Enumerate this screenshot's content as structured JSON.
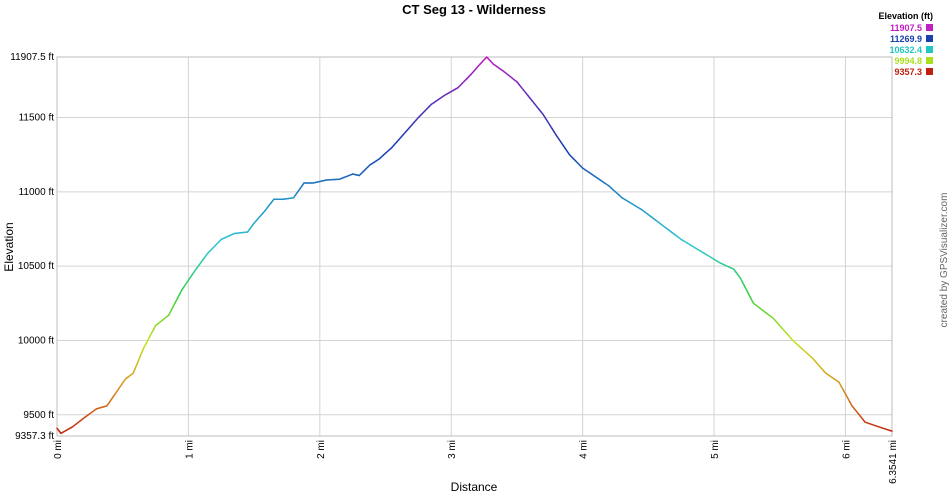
{
  "chart_data": {
    "type": "line",
    "title": "CT Seg 13 - Wilderness",
    "xlabel": "Distance",
    "ylabel": "Elevation",
    "credit": "created by GPSVisualizer.com",
    "xlim": [
      0,
      6.3541
    ],
    "ylim": [
      9357.3,
      11907.5
    ],
    "x_ticks": [
      {
        "value": 0,
        "label": "0 mi"
      },
      {
        "value": 1,
        "label": "1 mi"
      },
      {
        "value": 2,
        "label": "2 mi"
      },
      {
        "value": 3,
        "label": "3 mi"
      },
      {
        "value": 4,
        "label": "4 mi"
      },
      {
        "value": 5,
        "label": "5 mi"
      },
      {
        "value": 6,
        "label": "6 mi"
      },
      {
        "value": 6.3541,
        "label": "6.3541 mi"
      }
    ],
    "y_ticks": [
      {
        "value": 9357.3,
        "label": "9357.3 ft"
      },
      {
        "value": 9500,
        "label": "9500 ft"
      },
      {
        "value": 10000,
        "label": "10000 ft"
      },
      {
        "value": 10500,
        "label": "10500 ft"
      },
      {
        "value": 11000,
        "label": "11000 ft"
      },
      {
        "value": 11500,
        "label": "11500 ft"
      },
      {
        "value": 11907.5,
        "label": "11907.5 ft"
      }
    ],
    "grid": true,
    "legend": {
      "title": "Elevation (ft)",
      "placement": "top-right",
      "entries": [
        {
          "label": "11907.5",
          "color": "#c020c0"
        },
        {
          "label": "11269.9",
          "color": "#1a40b0"
        },
        {
          "label": "10632.4",
          "color": "#20c8c0"
        },
        {
          "label": "9994.8",
          "color": "#a8e020"
        },
        {
          "label": "9357.3",
          "color": "#c02010"
        }
      ]
    },
    "color_scale": [
      {
        "value": 9357.3,
        "color": "#c02010"
      },
      {
        "value": 9676.1,
        "color": "#d89020"
      },
      {
        "value": 9994.8,
        "color": "#c8e020"
      },
      {
        "value": 10313.6,
        "color": "#30d040"
      },
      {
        "value": 10632.4,
        "color": "#30c8d0"
      },
      {
        "value": 10951.1,
        "color": "#2090c8"
      },
      {
        "value": 11269.9,
        "color": "#1a40b0"
      },
      {
        "value": 11588.7,
        "color": "#5030b8"
      },
      {
        "value": 11907.5,
        "color": "#c020c0"
      }
    ],
    "series": [
      {
        "x": [
          0,
          0.03,
          0.07,
          0.12,
          0.2,
          0.3,
          0.38,
          0.45,
          0.52,
          0.58,
          0.66,
          0.75,
          0.85,
          0.95,
          1.05,
          1.15,
          1.25,
          1.35,
          1.45,
          1.5,
          1.58,
          1.65,
          1.72,
          1.8,
          1.88,
          1.95,
          2.05,
          2.15,
          2.25,
          2.3,
          2.38,
          2.45,
          2.55,
          2.65,
          2.75,
          2.85,
          2.95,
          3.05,
          3.15,
          3.22,
          3.27,
          3.32,
          3.4,
          3.5,
          3.6,
          3.7,
          3.8,
          3.9,
          4.0,
          4.1,
          4.2,
          4.3,
          4.45,
          4.6,
          4.75,
          4.9,
          5.05,
          5.15,
          5.2,
          5.3,
          5.45,
          5.6,
          5.75,
          5.85,
          5.95,
          6.05,
          6.15,
          6.25,
          6.3541
        ],
        "y": [
          9410,
          9375,
          9395,
          9420,
          9475,
          9540,
          9560,
          9650,
          9740,
          9780,
          9950,
          10100,
          10170,
          10340,
          10470,
          10590,
          10680,
          10720,
          10730,
          10790,
          10870,
          10950,
          10950,
          10960,
          11060,
          11060,
          11080,
          11085,
          11120,
          11110,
          11180,
          11220,
          11300,
          11400,
          11500,
          11590,
          11650,
          11700,
          11790,
          11860,
          11907.5,
          11860,
          11810,
          11740,
          11630,
          11520,
          11380,
          11250,
          11160,
          11100,
          11040,
          10960,
          10880,
          10780,
          10680,
          10600,
          10520,
          10480,
          10420,
          10250,
          10150,
          10000,
          9880,
          9780,
          9720,
          9560,
          9450,
          9420,
          9390
        ]
      }
    ]
  }
}
